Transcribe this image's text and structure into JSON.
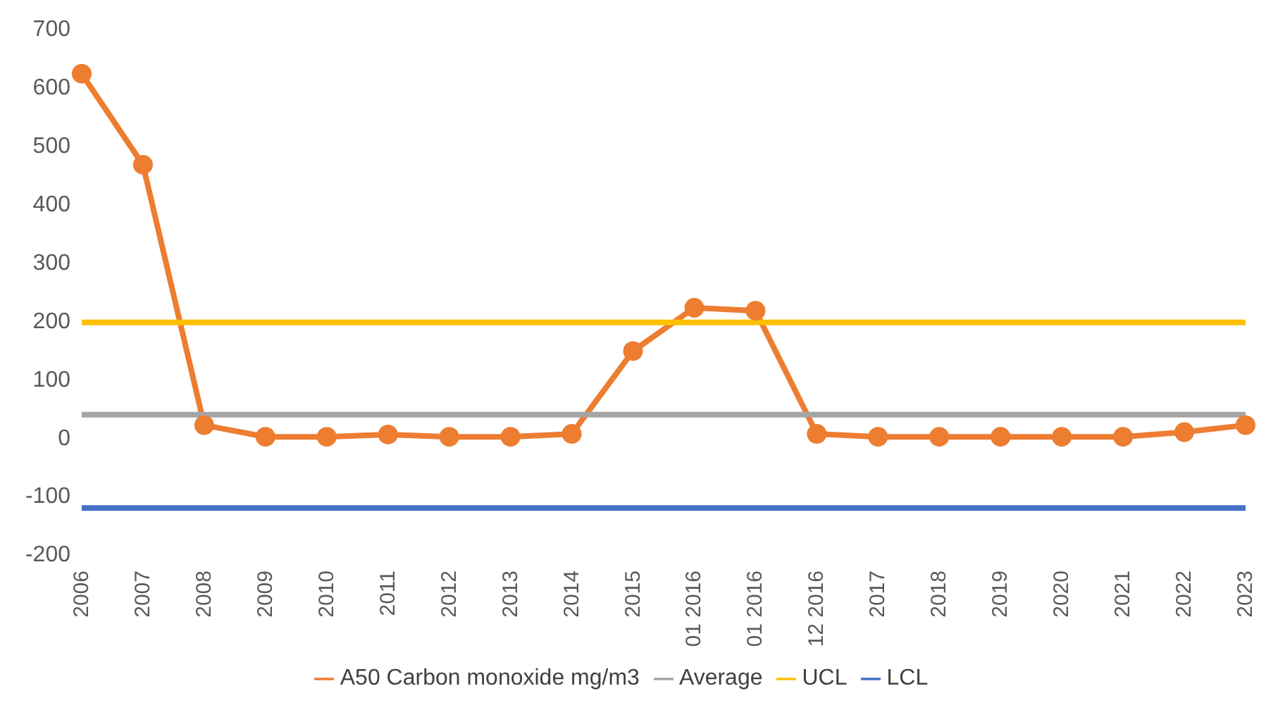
{
  "chart_data": {
    "type": "line",
    "categories": [
      "2006",
      "2007",
      "2008",
      "2009",
      "2010",
      "2011",
      "2012",
      "2013",
      "2014",
      "2015",
      "01 2016",
      "01 2016",
      "12 2016",
      "2017",
      "2018",
      "2019",
      "2020",
      "2021",
      "2022",
      "2023"
    ],
    "series": [
      {
        "name": "A50 Carbon monoxide mg/m3",
        "color": "#ed7d31",
        "marker": "circle",
        "values": [
          622,
          466,
          20,
          0,
          0,
          4,
          0,
          0,
          5,
          147,
          221,
          216,
          5,
          0,
          0,
          0,
          0,
          0,
          8,
          20
        ]
      },
      {
        "name": "Average",
        "color": "#a5a5a5",
        "marker": "none",
        "values": [
          38,
          38,
          38,
          38,
          38,
          38,
          38,
          38,
          38,
          38,
          38,
          38,
          38,
          38,
          38,
          38,
          38,
          38,
          38,
          38
        ]
      },
      {
        "name": "UCL",
        "color": "#ffc000",
        "marker": "none",
        "values": [
          196,
          196,
          196,
          196,
          196,
          196,
          196,
          196,
          196,
          196,
          196,
          196,
          196,
          196,
          196,
          196,
          196,
          196,
          196,
          196
        ]
      },
      {
        "name": "LCL",
        "color": "#4472c4",
        "marker": "none",
        "values": [
          -122,
          -122,
          -122,
          -122,
          -122,
          -122,
          -122,
          -122,
          -122,
          -122,
          -122,
          -122,
          -122,
          -122,
          -122,
          -122,
          -122,
          -122,
          -122,
          -122
        ]
      }
    ],
    "ylim": [
      -200,
      700
    ],
    "yticks": [
      -200,
      -100,
      0,
      100,
      200,
      300,
      400,
      500,
      600,
      700
    ],
    "grid": false,
    "legend": "bottom"
  }
}
